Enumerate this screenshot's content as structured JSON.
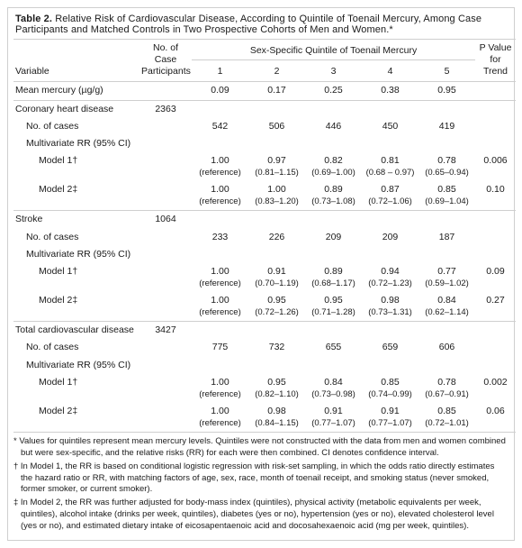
{
  "title_prefix": "Table 2.",
  "title": "Relative Risk of Cardiovascular Disease, According to Quintile of Toenail Mercury, Among Case Participants and Matched Controls in Two Prospective Cohorts of Men and Women.*",
  "columns": {
    "variable": "Variable",
    "n_case": "No. of Case Participants",
    "quintile_header": "Sex-Specific Quintile of Toenail Mercury",
    "p_trend": "P Value for Trend"
  },
  "quintiles": [
    "1",
    "2",
    "3",
    "4",
    "5"
  ],
  "mean_mercury": {
    "label": "Mean mercury (µg/g)",
    "vals": [
      "0.09",
      "0.17",
      "0.25",
      "0.38",
      "0.95"
    ]
  },
  "sections": [
    {
      "name": "Coronary heart disease",
      "n": "2363",
      "cases": {
        "label": "No. of cases",
        "vals": [
          "542",
          "506",
          "446",
          "450",
          "419"
        ]
      },
      "mv_label": "Multivariate RR (95% CI)",
      "models": [
        {
          "label": "Model 1",
          "sym": "dag",
          "rr": [
            "1.00",
            "0.97",
            "0.82",
            "0.81",
            "0.78"
          ],
          "ci": [
            "(reference)",
            "(0.81–1.15)",
            "(0.69–1.00)",
            "(0.68 – 0.97)",
            "(0.65–0.94)"
          ],
          "p": "0.006"
        },
        {
          "label": "Model 2",
          "sym": "ddag",
          "rr": [
            "1.00",
            "1.00",
            "0.89",
            "0.87",
            "0.85"
          ],
          "ci": [
            "(reference)",
            "(0.83–1.20)",
            "(0.73–1.08)",
            "(0.72–1.06)",
            "(0.69–1.04)"
          ],
          "p": "0.10"
        }
      ]
    },
    {
      "name": "Stroke",
      "n": "1064",
      "cases": {
        "label": "No. of cases",
        "vals": [
          "233",
          "226",
          "209",
          "209",
          "187"
        ]
      },
      "mv_label": "Multivariate RR (95% CI)",
      "models": [
        {
          "label": "Model 1",
          "sym": "dag",
          "rr": [
            "1.00",
            "0.91",
            "0.89",
            "0.94",
            "0.77"
          ],
          "ci": [
            "(reference)",
            "(0.70–1.19)",
            "(0.68–1.17)",
            "(0.72–1.23)",
            "(0.59–1.02)"
          ],
          "p": "0.09"
        },
        {
          "label": "Model 2",
          "sym": "ddag",
          "rr": [
            "1.00",
            "0.95",
            "0.95",
            "0.98",
            "0.84"
          ],
          "ci": [
            "(reference)",
            "(0.72–1.26)",
            "(0.71–1.28)",
            "(0.73–1.31)",
            "(0.62–1.14)"
          ],
          "p": "0.27"
        }
      ]
    },
    {
      "name": "Total cardiovascular disease",
      "n": "3427",
      "cases": {
        "label": "No. of cases",
        "vals": [
          "775",
          "732",
          "655",
          "659",
          "606"
        ]
      },
      "mv_label": "Multivariate RR (95% CI)",
      "models": [
        {
          "label": "Model 1",
          "sym": "dag",
          "rr": [
            "1.00",
            "0.95",
            "0.84",
            "0.85",
            "0.78"
          ],
          "ci": [
            "(reference)",
            "(0.82–1.10)",
            "(0.73–0.98)",
            "(0.74–0.99)",
            "(0.67–0.91)"
          ],
          "p": "0.002"
        },
        {
          "label": "Model 2",
          "sym": "ddag",
          "rr": [
            "1.00",
            "0.98",
            "0.91",
            "0.91",
            "0.85"
          ],
          "ci": [
            "(reference)",
            "(0.84–1.15)",
            "(0.77–1.07)",
            "(0.77–1.07)",
            "(0.72–1.01)"
          ],
          "p": "0.06"
        }
      ]
    }
  ],
  "footnotes": [
    "* Values for quintiles represent mean mercury levels. Quintiles were not constructed with the data from men and women combined but were sex-specific, and the relative risks (RR) for each were then combined. CI denotes confidence interval.",
    "† In Model 1, the RR is based on conditional logistic regression with risk-set sampling, in which the odds ratio directly estimates the hazard ratio or RR, with matching factors of age, sex, race, month of toenail receipt, and smoking status (never smoked, former smoker, or current smoker).",
    "‡ In Model 2, the RR was further adjusted for body-mass index (quintiles), physical activity (metabolic equivalents per week, quintiles), alcohol intake (drinks per week, quintiles), diabetes (yes or no), hypertension (yes or no), elevated cholesterol level (yes or no), and estimated dietary intake of eicosapentaenoic acid and docosahexaenoic acid (mg per week, quintiles)."
  ],
  "style": {
    "border_color": "#cfcfcf",
    "text_color": "#1a1a1a",
    "bg_color": "#ffffff",
    "base_fontsize": 10.5,
    "footnote_fontsize": 9.5
  }
}
